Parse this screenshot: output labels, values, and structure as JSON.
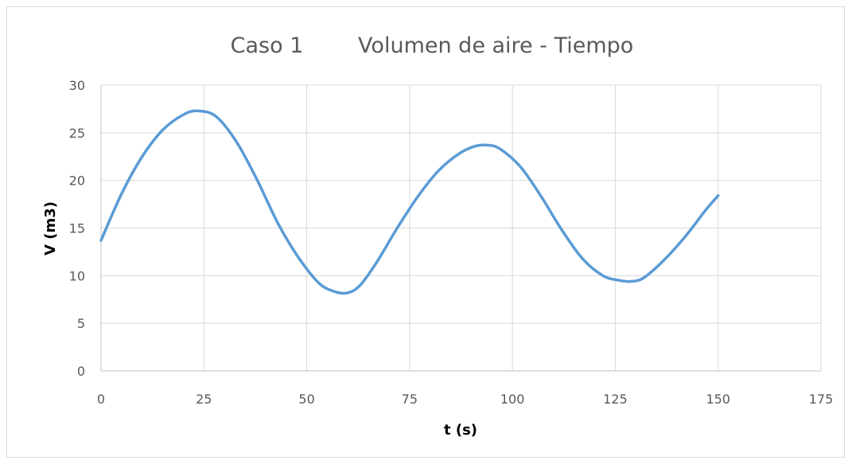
{
  "chart_data": {
    "type": "line",
    "title": "Caso 1        Volumen de aire - Tiempo",
    "xlabel": "t (s)",
    "ylabel": "V (m3)",
    "xlim": [
      0,
      175
    ],
    "ylim": [
      0,
      30
    ],
    "x_ticks": [
      0,
      25,
      50,
      75,
      100,
      125,
      150,
      175
    ],
    "y_ticks": [
      0,
      5,
      10,
      15,
      20,
      25,
      30
    ],
    "grid": true,
    "legend": "none",
    "series": [
      {
        "color": "#5b9bd5",
        "x": [
          0,
          5,
          10,
          15,
          20,
          23.5,
          28,
          33,
          38,
          43,
          48,
          53,
          57,
          60,
          63,
          67,
          72,
          77,
          82,
          87,
          91,
          94,
          97,
          102,
          107,
          112,
          117,
          122,
          126,
          129,
          132,
          137,
          142,
          147,
          150
        ],
        "y": [
          13.7,
          18.6,
          22.5,
          25.3,
          26.9,
          27.3,
          26.7,
          24.0,
          20.0,
          15.5,
          11.9,
          9.2,
          8.3,
          8.2,
          9.0,
          11.4,
          15.0,
          18.3,
          21.0,
          22.8,
          23.6,
          23.7,
          23.3,
          21.4,
          18.3,
          14.8,
          11.8,
          10.0,
          9.5,
          9.4,
          9.8,
          11.7,
          14.1,
          16.9,
          18.4
        ]
      }
    ]
  }
}
